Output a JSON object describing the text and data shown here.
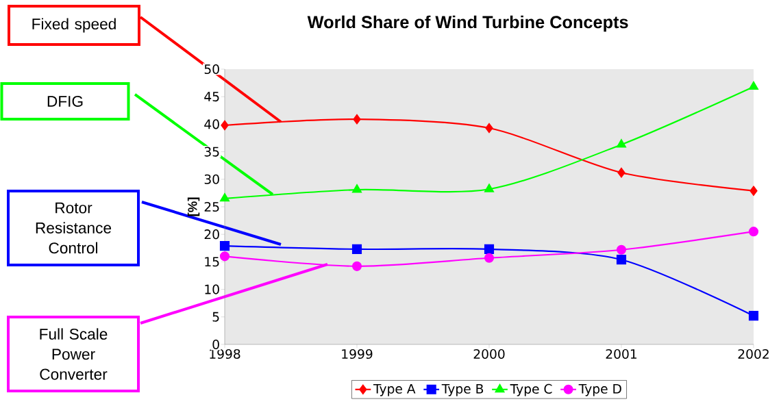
{
  "chart_data": {
    "type": "line",
    "title": "World Share of Wind Turbine Concepts",
    "ylabel": "[%]",
    "x": [
      1998,
      1999,
      2000,
      2001,
      2002
    ],
    "xlim": [
      1998,
      2002
    ],
    "xticks": [
      1998,
      1999,
      2000,
      2001,
      2002
    ],
    "ylim": [
      0,
      50
    ],
    "yticks": [
      0,
      5,
      10,
      15,
      20,
      25,
      30,
      35,
      40,
      45,
      50
    ],
    "grid": false,
    "legend": "bottom",
    "series": [
      {
        "name": "Type A",
        "color": "#ff0000",
        "marker": "diamond",
        "values": [
          39.8,
          40.9,
          39.3,
          31.2,
          27.9
        ]
      },
      {
        "name": "Type B",
        "color": "#0000ff",
        "marker": "square",
        "values": [
          17.9,
          17.3,
          17.3,
          15.4,
          5.2
        ]
      },
      {
        "name": "Type C",
        "color": "#00ff00",
        "marker": "triangle",
        "values": [
          26.5,
          28.1,
          28.2,
          36.3,
          46.8
        ]
      },
      {
        "name": "Type D",
        "color": "#ff00ff",
        "marker": "circle",
        "values": [
          16.0,
          14.2,
          15.7,
          17.2,
          20.5
        ]
      }
    ],
    "annotations": [
      "Fixed speed",
      "DFIG",
      "Rotor Resistance Control",
      "Full Scale Power Converter"
    ]
  }
}
